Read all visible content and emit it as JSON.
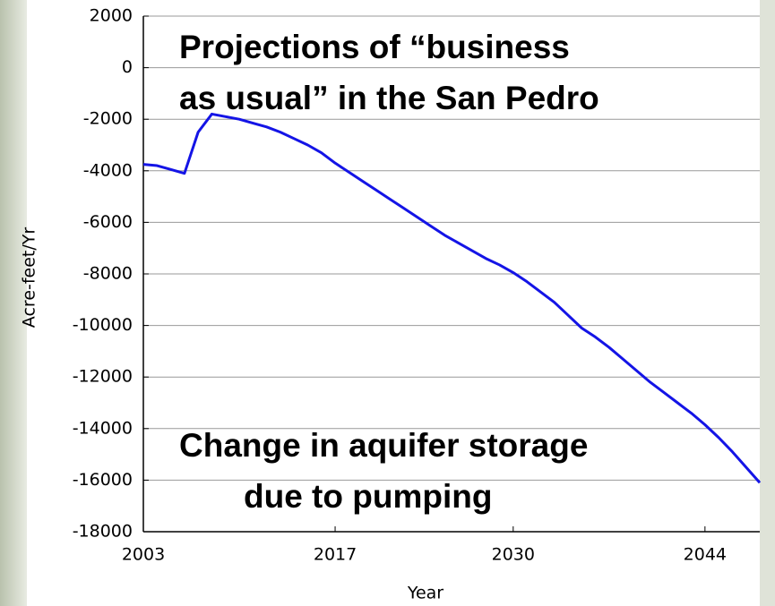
{
  "chart_data": {
    "type": "line",
    "annotations": [
      [
        "Projections of “business",
        "as usual” in the San Pedro"
      ],
      [
        "Change in aquifer storage",
        "due to pumping"
      ]
    ],
    "x_label": "Year",
    "y_label": "Acre-feet/Yr",
    "x": [
      2003,
      2004,
      2005,
      2006,
      2007,
      2008,
      2009,
      2010,
      2011,
      2012,
      2013,
      2014,
      2015,
      2016,
      2017,
      2018,
      2019,
      2020,
      2021,
      2022,
      2023,
      2024,
      2025,
      2026,
      2027,
      2028,
      2029,
      2030,
      2031,
      2032,
      2033,
      2034,
      2035,
      2036,
      2037,
      2038,
      2039,
      2040,
      2041,
      2042,
      2043,
      2044,
      2045,
      2046,
      2047,
      2048
    ],
    "series": [
      {
        "name": "Change in aquifer storage",
        "color": "#1414e6",
        "values": [
          -3750,
          -3800,
          -3950,
          -4100,
          -2500,
          -1800,
          -1900,
          -2000,
          -2150,
          -2300,
          -2500,
          -2750,
          -3000,
          -3300,
          -3700,
          -4050,
          -4400,
          -4750,
          -5100,
          -5450,
          -5800,
          -6150,
          -6500,
          -6800,
          -7100,
          -7400,
          -7650,
          -7950,
          -8300,
          -8700,
          -9100,
          -9600,
          -10100,
          -10450,
          -10850,
          -11300,
          -11750,
          -12200,
          -12600,
          -13000,
          -13400,
          -13850,
          -14350,
          -14900,
          -15500,
          -16100
        ]
      }
    ],
    "xlim": [
      2003,
      2048
    ],
    "xticks": [
      2003,
      2017,
      2030,
      2044
    ],
    "ylim": [
      -18000,
      2000
    ],
    "yticks": [
      2000,
      0,
      -2000,
      -4000,
      -6000,
      -8000,
      -10000,
      -12000,
      -14000,
      -16000,
      -18000
    ],
    "grid": true
  }
}
